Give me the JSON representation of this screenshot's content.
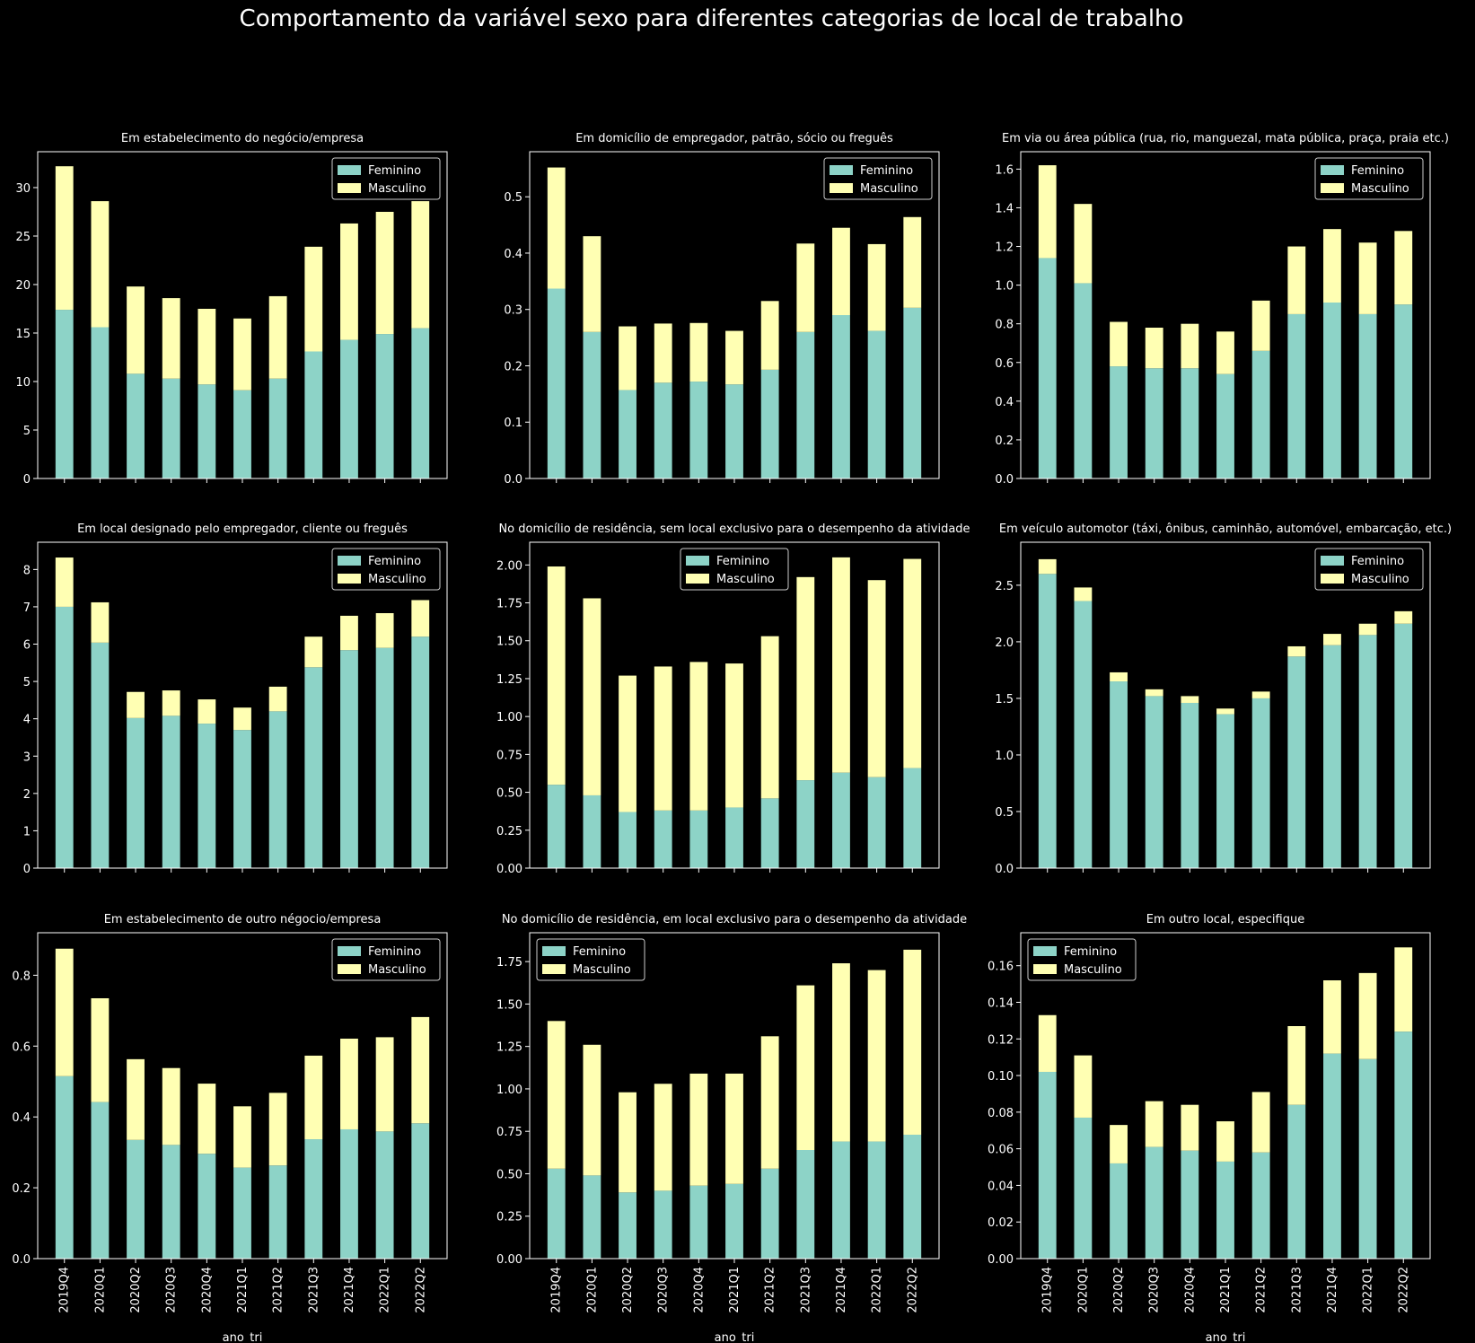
{
  "title": "Comportamento da variável sexo para diferentes categorias de local de trabalho",
  "colors": {
    "feminino": "#8dd3c7",
    "masculino": "#ffffb3",
    "background": "#000000",
    "foreground": "#ffffff"
  },
  "chart_data": [
    {
      "type": "bar",
      "stacked": true,
      "title": "Em estabelecimento do negócio/empresa",
      "categories": [
        "2019Q4",
        "2020Q1",
        "2020Q2",
        "2020Q3",
        "2020Q4",
        "2021Q1",
        "2021Q2",
        "2021Q3",
        "2021Q4",
        "2022Q1",
        "2022Q2"
      ],
      "series": [
        {
          "name": "Feminino",
          "values": [
            17.4,
            15.6,
            10.8,
            10.3,
            9.7,
            9.1,
            10.3,
            13.1,
            14.3,
            14.9,
            15.5
          ]
        },
        {
          "name": "Masculino",
          "values": [
            14.8,
            13.0,
            9.0,
            8.3,
            7.8,
            7.4,
            8.5,
            10.8,
            12.0,
            12.6,
            13.1
          ]
        }
      ],
      "xlabel": "",
      "ylabel": "",
      "ylim": [
        0,
        33.7
      ],
      "yticks": [
        "0",
        "5",
        "10",
        "15",
        "20",
        "25",
        "30"
      ],
      "legend": "upper right"
    },
    {
      "type": "bar",
      "stacked": true,
      "title": "Em domicílio de empregador, patrão, sócio ou freguês",
      "categories": [
        "2019Q4",
        "2020Q1",
        "2020Q2",
        "2020Q3",
        "2020Q4",
        "2021Q1",
        "2021Q2",
        "2021Q3",
        "2021Q4",
        "2022Q1",
        "2022Q2"
      ],
      "series": [
        {
          "name": "Feminino",
          "values": [
            0.337,
            0.26,
            0.157,
            0.17,
            0.172,
            0.167,
            0.193,
            0.26,
            0.29,
            0.262,
            0.303
          ]
        },
        {
          "name": "Masculino",
          "values": [
            0.215,
            0.17,
            0.113,
            0.105,
            0.104,
            0.095,
            0.122,
            0.157,
            0.155,
            0.154,
            0.161
          ]
        }
      ],
      "xlabel": "",
      "ylabel": "",
      "ylim": [
        0,
        0.58
      ],
      "yticks": [
        "0.0",
        "0.1",
        "0.2",
        "0.3",
        "0.4",
        "0.5"
      ],
      "legend": "upper right"
    },
    {
      "type": "bar",
      "stacked": true,
      "title": "Em via ou área pública (rua, rio, manguezal, mata pública, praça, praia etc.)",
      "categories": [
        "2019Q4",
        "2020Q1",
        "2020Q2",
        "2020Q3",
        "2020Q4",
        "2021Q1",
        "2021Q2",
        "2021Q3",
        "2021Q4",
        "2022Q1",
        "2022Q2"
      ],
      "series": [
        {
          "name": "Feminino",
          "values": [
            1.14,
            1.01,
            0.58,
            0.57,
            0.57,
            0.54,
            0.66,
            0.85,
            0.91,
            0.85,
            0.9
          ]
        },
        {
          "name": "Masculino",
          "values": [
            0.48,
            0.41,
            0.23,
            0.21,
            0.23,
            0.22,
            0.26,
            0.35,
            0.38,
            0.37,
            0.38
          ]
        }
      ],
      "xlabel": "",
      "ylabel": "",
      "ylim": [
        0,
        1.69
      ],
      "yticks": [
        "0.0",
        "0.2",
        "0.4",
        "0.6",
        "0.8",
        "1.0",
        "1.2",
        "1.4",
        "1.6"
      ],
      "legend": "upper right"
    },
    {
      "type": "bar",
      "stacked": true,
      "title": "Em local designado pelo empregador, cliente ou freguês",
      "categories": [
        "2019Q4",
        "2020Q1",
        "2020Q2",
        "2020Q3",
        "2020Q4",
        "2021Q1",
        "2021Q2",
        "2021Q3",
        "2021Q4",
        "2022Q1",
        "2022Q2"
      ],
      "series": [
        {
          "name": "Feminino",
          "values": [
            7.0,
            6.04,
            4.02,
            4.08,
            3.87,
            3.7,
            4.2,
            5.38,
            5.84,
            5.9,
            6.2
          ]
        },
        {
          "name": "Masculino",
          "values": [
            1.32,
            1.08,
            0.7,
            0.68,
            0.65,
            0.6,
            0.66,
            0.82,
            0.92,
            0.93,
            0.98
          ]
        }
      ],
      "xlabel": "",
      "ylabel": "",
      "ylim": [
        0,
        8.73
      ],
      "yticks": [
        "0",
        "1",
        "2",
        "3",
        "4",
        "5",
        "6",
        "7",
        "8"
      ],
      "legend": "upper right"
    },
    {
      "type": "bar",
      "stacked": true,
      "title": "No domicílio de residência, sem local exclusivo para o desempenho da atividade",
      "categories": [
        "2019Q4",
        "2020Q1",
        "2020Q2",
        "2020Q3",
        "2020Q4",
        "2021Q1",
        "2021Q2",
        "2021Q3",
        "2021Q4",
        "2022Q1",
        "2022Q2"
      ],
      "series": [
        {
          "name": "Feminino",
          "values": [
            0.55,
            0.48,
            0.37,
            0.38,
            0.38,
            0.4,
            0.46,
            0.58,
            0.63,
            0.6,
            0.66
          ]
        },
        {
          "name": "Masculino",
          "values": [
            1.44,
            1.3,
            0.9,
            0.95,
            0.98,
            0.95,
            1.07,
            1.34,
            1.42,
            1.3,
            1.38
          ]
        }
      ],
      "xlabel": "",
      "ylabel": "",
      "ylim": [
        0,
        2.15
      ],
      "yticks": [
        "0.00",
        "0.25",
        "0.50",
        "0.75",
        "1.00",
        "1.25",
        "1.50",
        "1.75",
        "2.00"
      ],
      "legend": "upper center"
    },
    {
      "type": "bar",
      "stacked": true,
      "title": "Em veículo automotor (táxi, ônibus, caminhão, automóvel, embarcação, etc.)",
      "categories": [
        "2019Q4",
        "2020Q1",
        "2020Q2",
        "2020Q3",
        "2020Q4",
        "2021Q1",
        "2021Q2",
        "2021Q3",
        "2021Q4",
        "2022Q1",
        "2022Q2"
      ],
      "series": [
        {
          "name": "Feminino",
          "values": [
            2.6,
            2.36,
            1.65,
            1.52,
            1.46,
            1.36,
            1.5,
            1.87,
            1.97,
            2.06,
            2.16
          ]
        },
        {
          "name": "Masculino",
          "values": [
            0.13,
            0.12,
            0.08,
            0.06,
            0.06,
            0.05,
            0.06,
            0.09,
            0.1,
            0.1,
            0.11
          ]
        }
      ],
      "xlabel": "",
      "ylabel": "",
      "ylim": [
        0,
        2.88
      ],
      "yticks": [
        "0.0",
        "0.5",
        "1.0",
        "1.5",
        "2.0",
        "2.5"
      ],
      "legend": "upper right"
    },
    {
      "type": "bar",
      "stacked": true,
      "title": "Em estabelecimento de outro négocio/empresa",
      "categories": [
        "2019Q4",
        "2020Q1",
        "2020Q2",
        "2020Q3",
        "2020Q4",
        "2021Q1",
        "2021Q2",
        "2021Q3",
        "2021Q4",
        "2022Q1",
        "2022Q2"
      ],
      "series": [
        {
          "name": "Feminino",
          "values": [
            0.515,
            0.442,
            0.335,
            0.321,
            0.296,
            0.257,
            0.263,
            0.337,
            0.365,
            0.359,
            0.382
          ]
        },
        {
          "name": "Masculino",
          "values": [
            0.36,
            0.293,
            0.228,
            0.217,
            0.198,
            0.173,
            0.205,
            0.236,
            0.256,
            0.266,
            0.3
          ]
        }
      ],
      "xlabel": "ano_tri",
      "ylabel": "",
      "ylim": [
        0,
        0.92
      ],
      "yticks": [
        "0.0",
        "0.2",
        "0.4",
        "0.6",
        "0.8"
      ],
      "legend": "upper right"
    },
    {
      "type": "bar",
      "stacked": true,
      "title": "No domicílio de residência, em local exclusivo para o desempenho da atividade",
      "categories": [
        "2019Q4",
        "2020Q1",
        "2020Q2",
        "2020Q3",
        "2020Q4",
        "2021Q1",
        "2021Q2",
        "2021Q3",
        "2021Q4",
        "2022Q1",
        "2022Q2"
      ],
      "series": [
        {
          "name": "Feminino",
          "values": [
            0.53,
            0.49,
            0.39,
            0.4,
            0.43,
            0.44,
            0.53,
            0.64,
            0.69,
            0.69,
            0.73
          ]
        },
        {
          "name": "Masculino",
          "values": [
            0.87,
            0.77,
            0.59,
            0.63,
            0.66,
            0.65,
            0.78,
            0.97,
            1.05,
            1.01,
            1.09
          ]
        }
      ],
      "xlabel": "ano_tri",
      "ylabel": "",
      "ylim": [
        0,
        1.92
      ],
      "yticks": [
        "0.00",
        "0.25",
        "0.50",
        "0.75",
        "1.00",
        "1.25",
        "1.50",
        "1.75"
      ],
      "legend": "upper left"
    },
    {
      "type": "bar",
      "stacked": true,
      "title": "Em outro local, especifique",
      "categories": [
        "2019Q4",
        "2020Q1",
        "2020Q2",
        "2020Q3",
        "2020Q4",
        "2021Q1",
        "2021Q2",
        "2021Q3",
        "2021Q4",
        "2022Q1",
        "2022Q2"
      ],
      "series": [
        {
          "name": "Feminino",
          "values": [
            0.102,
            0.077,
            0.052,
            0.061,
            0.059,
            0.053,
            0.058,
            0.084,
            0.112,
            0.109,
            0.124
          ]
        },
        {
          "name": "Masculino",
          "values": [
            0.031,
            0.034,
            0.021,
            0.025,
            0.025,
            0.022,
            0.033,
            0.043,
            0.04,
            0.047,
            0.046
          ]
        }
      ],
      "xlabel": "ano_tri",
      "ylabel": "",
      "ylim": [
        0,
        0.178
      ],
      "yticks": [
        "0.00",
        "0.02",
        "0.04",
        "0.06",
        "0.08",
        "0.10",
        "0.12",
        "0.14",
        "0.16"
      ],
      "legend": "upper left"
    }
  ]
}
